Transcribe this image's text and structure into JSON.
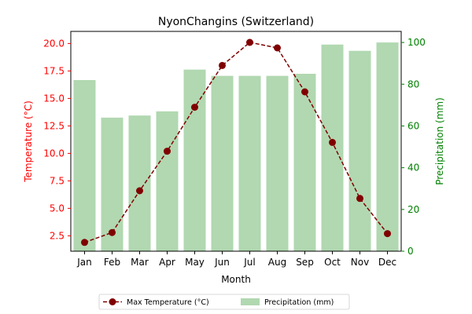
{
  "chart_data": {
    "type": "bar",
    "title": "NyonChangins (Switzerland)",
    "xlabel": "Month",
    "ylabel_left": "Temperature (°C)",
    "ylabel_right": "Precipitation (mm)",
    "categories": [
      "Jan",
      "Feb",
      "Mar",
      "Apr",
      "May",
      "Jun",
      "Jul",
      "Aug",
      "Sep",
      "Oct",
      "Nov",
      "Dec"
    ],
    "y_left_ticks": [
      "2.5",
      "5.0",
      "7.5",
      "10.0",
      "12.5",
      "15.0",
      "17.5",
      "20.0"
    ],
    "y_right_ticks": [
      "0",
      "20",
      "40",
      "60",
      "80",
      "100"
    ],
    "y_left_range": [
      1.1,
      21.1
    ],
    "y_right_range": [
      0,
      105.3
    ],
    "series": [
      {
        "name": "Max Temperature (°C)",
        "kind": "line",
        "axis": "left",
        "color": "#800000",
        "values": [
          1.9,
          2.8,
          6.6,
          10.2,
          14.2,
          18.0,
          20.1,
          19.6,
          15.6,
          11.0,
          5.9,
          2.7
        ]
      },
      {
        "name": "Precipitation (mm)",
        "kind": "bar",
        "axis": "right",
        "color": "#b1d8b1",
        "values": [
          82,
          64,
          65,
          67,
          87,
          84,
          84,
          84,
          85,
          99,
          96,
          100
        ]
      }
    ],
    "legend_position": "bottom-center",
    "grid": false,
    "left_axis_color": "#ff0000",
    "right_axis_color": "#008000"
  }
}
